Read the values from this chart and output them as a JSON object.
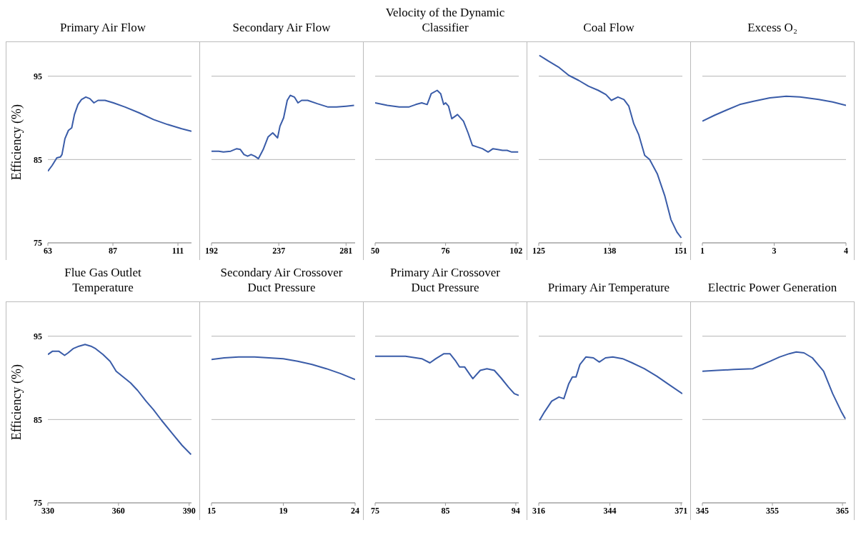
{
  "chart_data": [
    {
      "type": "line",
      "title": "Primary Air Flow",
      "ylabel": "Efficiency (%)",
      "color": "#3a5ca8",
      "grid": "y",
      "xlim": [
        63,
        116
      ],
      "xticks": [
        63,
        87,
        111
      ],
      "ylim": [
        75,
        99
      ],
      "yticks": [
        75,
        85,
        95
      ],
      "x": [
        63,
        64.6,
        66.3,
        67.6,
        68.2,
        69.3,
        70.6,
        71.8,
        72.8,
        74.1,
        75.4,
        77.0,
        78.5,
        80.0,
        81.5,
        84.1,
        87.2,
        91.5,
        96.7,
        102,
        107.2,
        112.4,
        116
      ],
      "values": [
        83.6,
        84.3,
        85.2,
        85.3,
        85.6,
        87.5,
        88.5,
        88.8,
        90.4,
        91.6,
        92.2,
        92.5,
        92.3,
        91.8,
        92.1,
        92.1,
        91.8,
        91.3,
        90.6,
        89.8,
        89.2,
        88.7,
        88.4
      ]
    },
    {
      "type": "line",
      "title": "Secondary Air Flow",
      "color": "#3a5ca8",
      "grid": "y",
      "tick_labels": "x",
      "xlim": [
        192,
        287
      ],
      "xticks": [
        192,
        {
          "value": 236.5,
          "label": "237"
        },
        281
      ],
      "ylim": [
        75,
        99
      ],
      "yticks": [
        75,
        85,
        95
      ],
      "x": [
        192,
        196.8,
        199.9,
        204.7,
        208.7,
        211.1,
        213.5,
        215.9,
        218.2,
        220.6,
        223,
        226.2,
        229.4,
        232.5,
        235.7,
        237.3,
        239.7,
        242.1,
        244.1,
        246.8,
        249.2,
        251.6,
        255.6,
        262,
        269.1,
        274.7,
        281,
        286.3
      ],
      "values": [
        86.0,
        86.0,
        85.9,
        86.0,
        86.3,
        86.2,
        85.6,
        85.4,
        85.6,
        85.4,
        85.1,
        86.2,
        87.7,
        88.2,
        87.6,
        89.0,
        90.0,
        92.1,
        92.7,
        92.5,
        91.8,
        92.1,
        92.1,
        91.7,
        91.3,
        91.3,
        91.4,
        91.5
      ]
    },
    {
      "type": "line",
      "title": "Velocity of the Dynamic Classifier",
      "color": "#3a5ca8",
      "grid": "y",
      "tick_labels": "x",
      "xlim": [
        50,
        103
      ],
      "xticks": [
        50,
        76,
        102
      ],
      "ylim": [
        75,
        99
      ],
      "yticks": [
        75,
        85,
        95
      ],
      "x": [
        50,
        54.5,
        58.9,
        62.4,
        65.0,
        67.2,
        69.2,
        70.7,
        72.9,
        74.2,
        75.3,
        76,
        77.1,
        78.3,
        80.4,
        82.6,
        84.3,
        85.9,
        87.8,
        89.6,
        91.7,
        93.5,
        95.2,
        97,
        98.7,
        100.4,
        102.8
      ],
      "values": [
        91.8,
        91.5,
        91.3,
        91.3,
        91.6,
        91.8,
        91.6,
        92.9,
        93.3,
        92.9,
        91.6,
        91.8,
        91.4,
        89.9,
        90.4,
        89.6,
        88.2,
        86.7,
        86.5,
        86.3,
        85.9,
        86.3,
        86.2,
        86.1,
        86.1,
        85.9,
        85.9
      ]
    },
    {
      "type": "line",
      "title": "Coal Flow",
      "color": "#3a5ca8",
      "grid": "y",
      "tick_labels": "x",
      "xlim": [
        125,
        151.3
      ],
      "xticks": [
        125,
        138,
        151
      ],
      "ylim": [
        75,
        99
      ],
      "yticks": [
        75,
        85,
        95
      ],
      "x": [
        125.1,
        126.8,
        128.6,
        130.5,
        132.3,
        134.1,
        135.9,
        137.3,
        138.3,
        139.5,
        140.6,
        141.5,
        142.4,
        143.3,
        144.4,
        145.3,
        146.7,
        148.1,
        149.2,
        150.3,
        151.1
      ],
      "values": [
        97.5,
        96.8,
        96.1,
        95.1,
        94.5,
        93.8,
        93.3,
        92.8,
        92.1,
        92.5,
        92.2,
        91.4,
        89.3,
        88.0,
        85.5,
        85.0,
        83.3,
        80.6,
        77.8,
        76.3,
        75.6
      ]
    },
    {
      "type": "line",
      "title": "Excess O₂",
      "color": "#3a5ca8",
      "grid": "y",
      "tick_labels": "x",
      "xlim": [
        1,
        4
      ],
      "xticks": [
        1,
        {
          "value": 2.5,
          "label": "3"
        },
        4
      ],
      "ylim": [
        75,
        99
      ],
      "yticks": [
        75,
        85,
        95
      ],
      "x": [
        1.0,
        1.25,
        1.49,
        1.78,
        2.07,
        2.41,
        2.75,
        3.04,
        3.43,
        3.72,
        4.0
      ],
      "values": [
        89.6,
        90.3,
        90.9,
        91.6,
        92.0,
        92.4,
        92.6,
        92.5,
        92.2,
        91.9,
        91.5
      ]
    },
    {
      "type": "line",
      "title": "Flue Gas Outlet Temperature",
      "ylabel": "Efficiency (%)",
      "color": "#3a5ca8",
      "grid": "y",
      "xlim": [
        330,
        391
      ],
      "xticks": [
        330,
        360,
        390
      ],
      "ylim": [
        75,
        99
      ],
      "yticks": [
        75,
        85,
        95
      ],
      "x": [
        330,
        332,
        334.6,
        337.1,
        338.6,
        340.7,
        343.2,
        345.8,
        348.3,
        350.3,
        353.4,
        356.4,
        359,
        362,
        365.1,
        368.1,
        371.7,
        374.8,
        378.3,
        382.9,
        387,
        390.8
      ],
      "values": [
        92.8,
        93.2,
        93.2,
        92.7,
        93.0,
        93.5,
        93.8,
        94.0,
        93.8,
        93.5,
        92.8,
        92.0,
        90.8,
        90.1,
        89.4,
        88.5,
        87.2,
        86.2,
        84.9,
        83.3,
        81.9,
        80.8
      ]
    },
    {
      "type": "line",
      "title": "Secondary Air Crossover Duct Pressure",
      "color": "#3a5ca8",
      "grid": "y",
      "tick_labels": "x",
      "xlim": [
        15,
        24
      ],
      "xticks": [
        15,
        {
          "value": 19.5,
          "label": "19"
        },
        24
      ],
      "ylim": [
        75,
        99
      ],
      "yticks": [
        75,
        85,
        95
      ],
      "x": [
        15,
        15.8,
        16.7,
        17.7,
        18.6,
        19.5,
        20.4,
        21.3,
        22.2,
        23.1,
        24
      ],
      "values": [
        92.2,
        92.4,
        92.5,
        92.5,
        92.4,
        92.3,
        92.0,
        91.6,
        91.1,
        90.5,
        89.8
      ]
    },
    {
      "type": "line",
      "title": "Primary Air Crossover Duct Pressure",
      "color": "#3a5ca8",
      "grid": "y",
      "tick_labels": "x",
      "xlim": [
        75,
        94.4
      ],
      "xticks": [
        75,
        {
          "value": 84.5,
          "label": "85"
        },
        94
      ],
      "ylim": [
        75,
        99
      ],
      "yticks": [
        75,
        85,
        95
      ],
      "x": [
        75,
        79.1,
        81.3,
        82.4,
        83.2,
        84.3,
        85.1,
        85.9,
        86.4,
        87.1,
        87.8,
        88.2,
        89.2,
        90.1,
        91.1,
        92,
        93,
        93.8,
        94.4
      ],
      "values": [
        92.6,
        92.6,
        92.3,
        91.8,
        92.3,
        92.9,
        92.9,
        92.0,
        91.3,
        91.3,
        90.4,
        89.9,
        90.9,
        91.1,
        90.9,
        90.0,
        88.9,
        88.1,
        87.9
      ]
    },
    {
      "type": "line",
      "title": "Primary Air Temperature",
      "color": "#3a5ca8",
      "grid": "y",
      "tick_labels": "x",
      "xlim": [
        316,
        371.5
      ],
      "xticks": [
        316,
        {
          "value": 343.5,
          "label": "344"
        },
        371
      ],
      "ylim": [
        75,
        99
      ],
      "yticks": [
        75,
        85,
        95
      ],
      "x": [
        316.3,
        318.2,
        321,
        323.8,
        325.7,
        327.6,
        329,
        330.4,
        331.9,
        334.2,
        337.1,
        339.4,
        341.8,
        344.6,
        348.4,
        352.1,
        356.8,
        361.6,
        366.3,
        371.5
      ],
      "values": [
        84.9,
        85.9,
        87.2,
        87.7,
        87.5,
        89.3,
        90.1,
        90.1,
        91.6,
        92.5,
        92.4,
        91.9,
        92.4,
        92.5,
        92.3,
        91.8,
        91.1,
        90.2,
        89.2,
        88.1
      ]
    },
    {
      "type": "line",
      "title": "Electric Power Generation",
      "color": "#3a5ca8",
      "grid": "y",
      "tick_labels": "x",
      "xlim": [
        345,
        365.5
      ],
      "xticks": [
        345,
        355,
        365
      ],
      "ylim": [
        75,
        99
      ],
      "yticks": [
        75,
        85,
        95
      ],
      "x": [
        345,
        347.1,
        349.5,
        352.2,
        353.3,
        354.7,
        356,
        357.4,
        358.4,
        359.5,
        360.7,
        362.3,
        363.6,
        364.8,
        365.4
      ],
      "values": [
        90.8,
        90.9,
        91.0,
        91.1,
        91.5,
        92.0,
        92.5,
        92.9,
        93.1,
        93.0,
        92.4,
        90.8,
        88.1,
        86.0,
        85.1
      ]
    }
  ]
}
